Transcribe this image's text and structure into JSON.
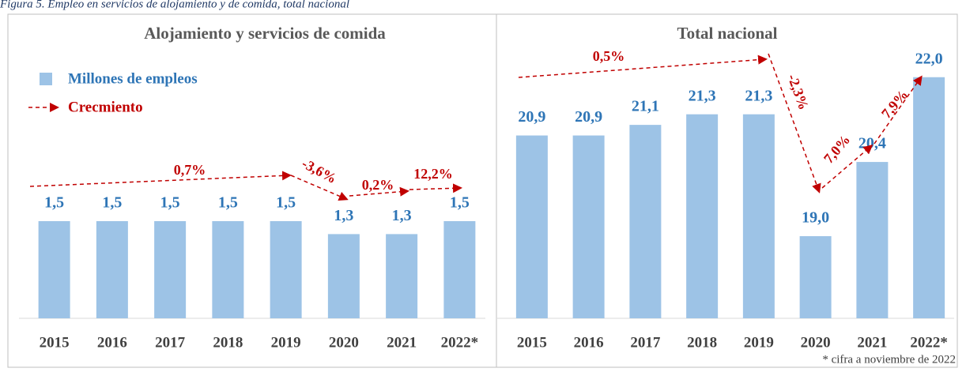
{
  "caption": "Figura 5. Empleo en servicios de alojamiento y de comida, total nacional",
  "footnote": "* cifra a noviembre de 2022",
  "chart_data": [
    {
      "type": "bar",
      "title": "Alojamiento y servicios de comida",
      "categories": [
        "2015",
        "2016",
        "2017",
        "2018",
        "2019",
        "2020",
        "2021",
        "2022*"
      ],
      "series": [
        {
          "name": "Millones de empleos",
          "color": "#9dc3e6",
          "values": [
            1.5,
            1.5,
            1.5,
            1.5,
            1.5,
            1.3,
            1.3,
            1.5
          ],
          "value_labels": [
            "1,5",
            "1,5",
            "1,5",
            "1,5",
            "1,5",
            "1,3",
            "1,3",
            "1,5"
          ]
        }
      ],
      "growth": {
        "name": "Crecmiento",
        "color": "#c00000",
        "labels": [
          "0,7%",
          "-3,6%",
          "0,2%",
          "12,2%"
        ]
      },
      "ylim": [
        0,
        4.5
      ]
    },
    {
      "type": "bar",
      "title": "Total nacional",
      "categories": [
        "2015",
        "2016",
        "2017",
        "2018",
        "2019",
        "2020",
        "2021",
        "2022*"
      ],
      "series": [
        {
          "name": "Millones de empleos",
          "color": "#9dc3e6",
          "values": [
            20.9,
            20.9,
            21.1,
            21.3,
            21.3,
            19.0,
            20.4,
            22.0
          ],
          "value_labels": [
            "20,9",
            "20,9",
            "21,1",
            "21,3",
            "21,3",
            "19,0",
            "20,4",
            "22,0"
          ]
        }
      ],
      "growth": {
        "name": "Crecmiento",
        "color": "#c00000",
        "labels": [
          "0,5%",
          "-2,3%",
          "7,0%",
          "7,9%"
        ]
      },
      "ylim": [
        17.45,
        22.95
      ]
    }
  ]
}
